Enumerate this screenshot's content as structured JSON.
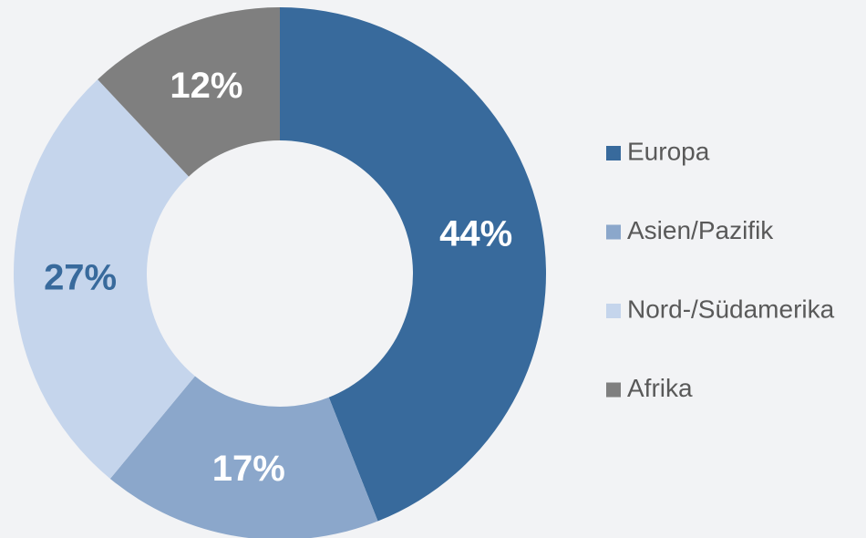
{
  "chart_data": {
    "type": "donut",
    "categories": [
      "Europa",
      "Asien/Pazifik",
      "Nord-/Südamerika",
      "Afrika"
    ],
    "values": [
      44,
      17,
      27,
      12
    ],
    "value_labels": [
      "44%",
      "17%",
      "27%",
      "12%"
    ],
    "colors": [
      "#386a9c",
      "#8ba7cb",
      "#c5d5ec",
      "#7f7f7f"
    ],
    "label_colors": [
      "#ffffff",
      "#ffffff",
      "#386a9c",
      "#ffffff"
    ],
    "legend": "right"
  }
}
